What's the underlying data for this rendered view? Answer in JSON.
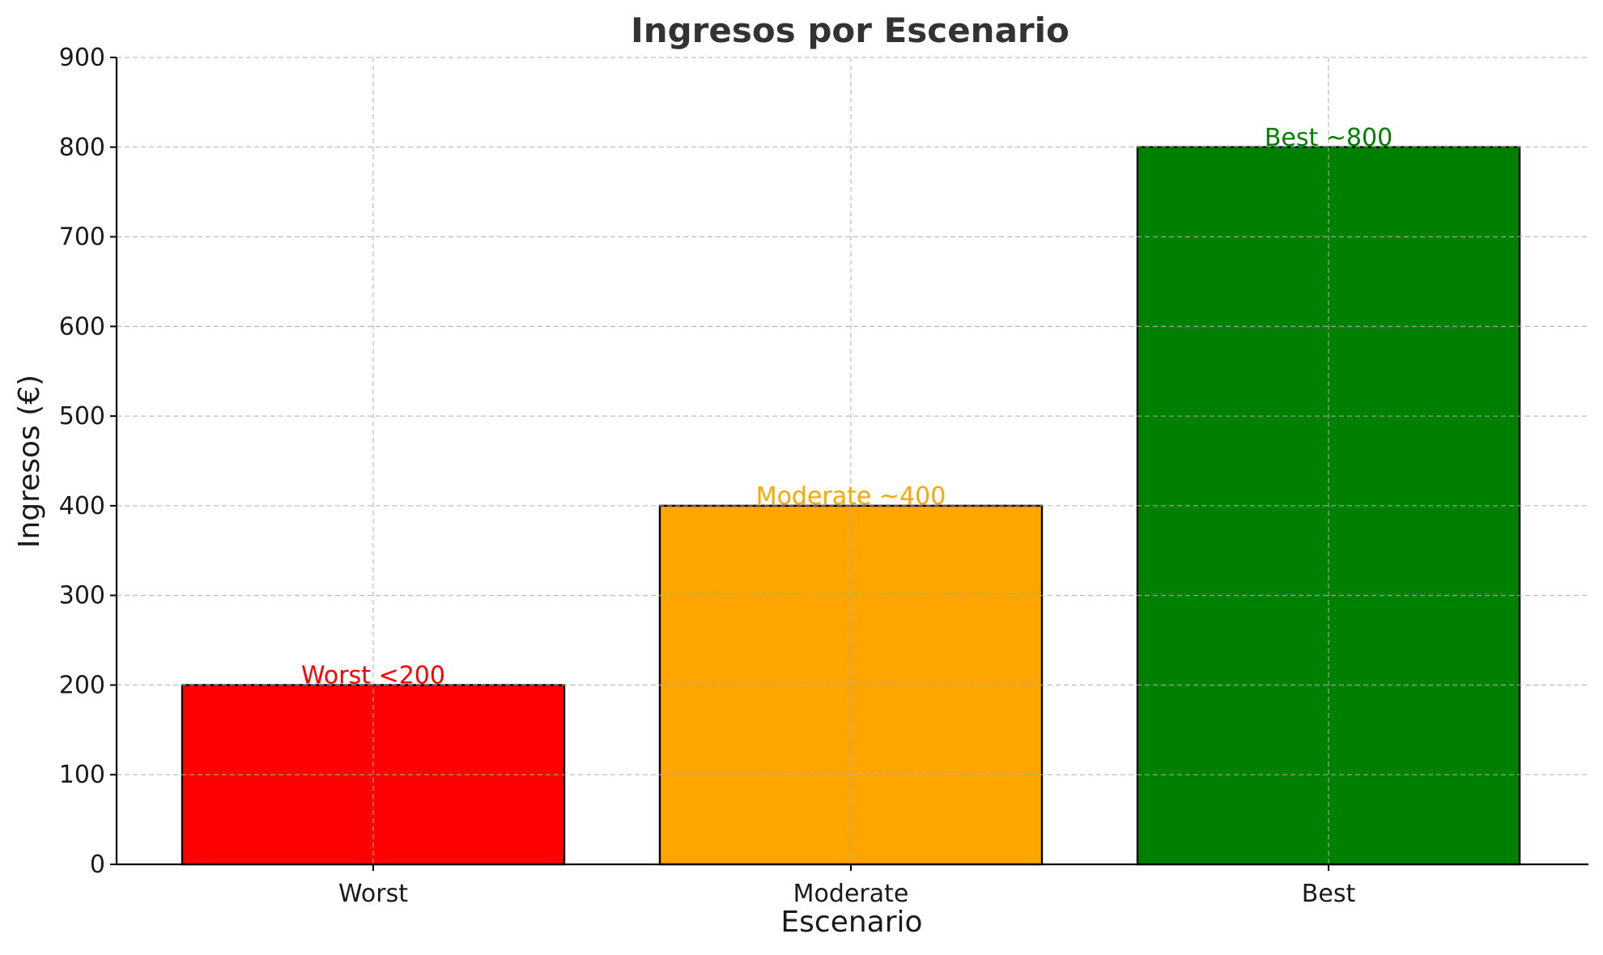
{
  "chart_data": {
    "type": "bar",
    "title": "Ingresos por Escenario",
    "xlabel": "Escenario",
    "ylabel": "Ingresos (€)",
    "categories": [
      "Worst",
      "Moderate",
      "Best"
    ],
    "values": [
      200,
      400,
      800
    ],
    "colors": [
      "#ff0000",
      "#ffa500",
      "#008000"
    ],
    "annotations": [
      "Worst <200",
      "Moderate ~400",
      "Best ~800"
    ],
    "ylim": [
      0,
      900
    ],
    "yticks": [
      0,
      100,
      200,
      300,
      400,
      500,
      600,
      700,
      800,
      900
    ],
    "grid": true,
    "edge_color": "#000000"
  }
}
